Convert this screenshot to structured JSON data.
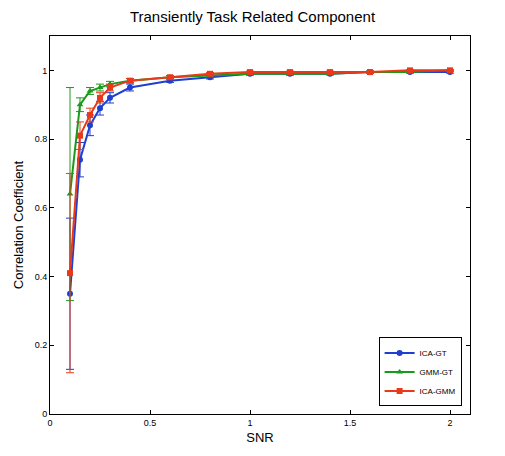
{
  "chart_data": {
    "type": "line",
    "title": "Transiently Task Related Component",
    "x_label": "SNR",
    "y_label": "Correlation Coefficient",
    "x": [
      0.1,
      0.15,
      0.2,
      0.25,
      0.3,
      0.4,
      0.6,
      0.8,
      1.0,
      1.2,
      1.4,
      1.6,
      1.8,
      2.0
    ],
    "series": [
      {
        "name": "ICA-GT",
        "color": "#1f3fd0",
        "marker": "circle",
        "line_style": "solid",
        "values": [
          0.35,
          0.74,
          0.84,
          0.89,
          0.92,
          0.95,
          0.97,
          0.98,
          0.99,
          0.99,
          0.99,
          0.995,
          0.995,
          0.995
        ],
        "error": [
          0.22,
          0.05,
          0.03,
          0.02,
          0.015,
          0.01,
          0.005,
          0.005,
          0.004,
          0.004,
          0.003,
          0.003,
          0.003,
          0.003
        ]
      },
      {
        "name": "GMM-GT",
        "color": "#1a9a1a",
        "marker": "triangle-up",
        "line_style": "solid",
        "values": [
          0.64,
          0.9,
          0.94,
          0.95,
          0.96,
          0.97,
          0.98,
          0.985,
          0.99,
          0.99,
          0.99,
          0.995,
          0.995,
          1.0
        ],
        "error": [
          0.31,
          0.02,
          0.01,
          0.01,
          0.008,
          0.006,
          0.005,
          0.004,
          0.003,
          0.003,
          0.003,
          0.003,
          0.002,
          0.002
        ]
      },
      {
        "name": "ICA-GMM",
        "color": "#e83a1a",
        "marker": "square",
        "line_style": "solid",
        "values": [
          0.41,
          0.81,
          0.87,
          0.92,
          0.95,
          0.97,
          0.98,
          0.99,
          0.995,
          0.995,
          0.995,
          0.995,
          1.0,
          1.0
        ],
        "error": [
          0.29,
          0.04,
          0.02,
          0.015,
          0.01,
          0.006,
          0.005,
          0.004,
          0.003,
          0.003,
          0.003,
          0.002,
          0.002,
          0.002
        ]
      }
    ],
    "xlim": [
      0,
      2.1
    ],
    "xticks": [
      0,
      0.5,
      1,
      1.5,
      2
    ],
    "ylim": [
      0,
      1.1
    ],
    "yticks": [
      0,
      0.2,
      0.4,
      0.6,
      0.8,
      1
    ],
    "grid": false,
    "legend": "lower right"
  }
}
